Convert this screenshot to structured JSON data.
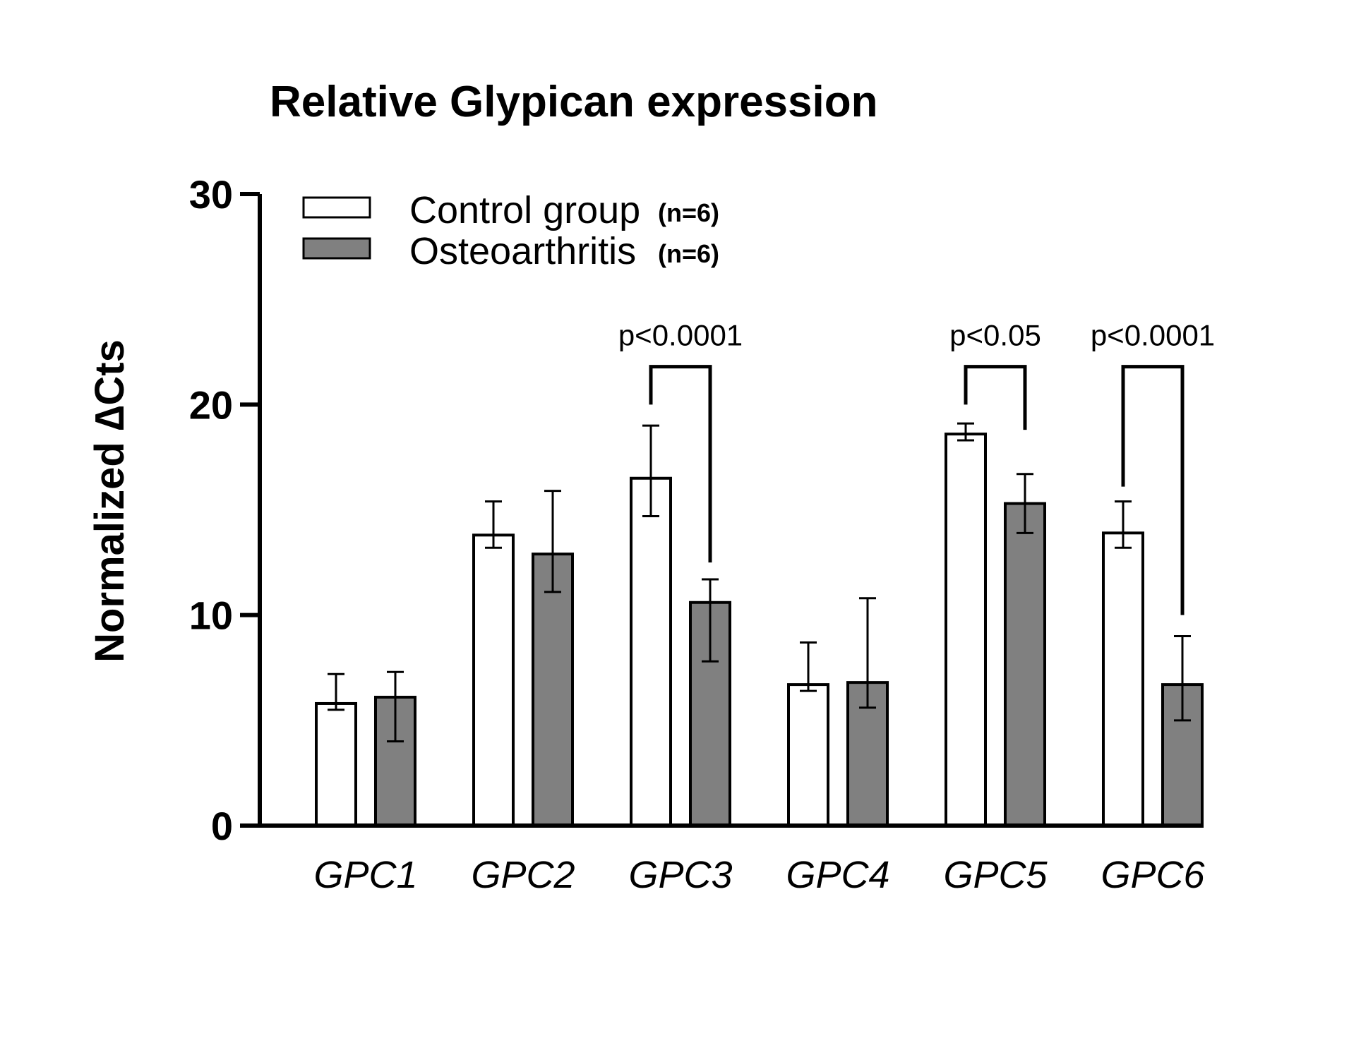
{
  "chart_data": {
    "type": "bar",
    "title": "Relative Glypican expression",
    "ylabel": "Normalized ∆Cts",
    "xlabel": "",
    "ylim": [
      0,
      30
    ],
    "yticks": [
      0,
      10,
      20,
      30
    ],
    "grid": false,
    "legend_position": "top-left",
    "categories": [
      "GPC1",
      "GPC2",
      "GPC3",
      "GPC4",
      "GPC5",
      "GPC6"
    ],
    "series": [
      {
        "name": "Control group",
        "n_label": "(n=6)",
        "color": "#ffffff",
        "values": [
          5.8,
          13.8,
          16.5,
          6.7,
          18.6,
          13.9
        ],
        "err_low": [
          5.5,
          13.2,
          14.7,
          6.4,
          18.3,
          13.2
        ],
        "err_high": [
          7.2,
          15.4,
          19.0,
          8.7,
          19.1,
          15.4
        ]
      },
      {
        "name": "Osteoarthritis",
        "n_label": "(n=6)",
        "color": "#808080",
        "values": [
          6.1,
          12.9,
          10.6,
          6.8,
          15.3,
          6.7
        ],
        "err_low": [
          4.0,
          11.1,
          7.8,
          5.6,
          13.9,
          5.0
        ],
        "err_high": [
          7.3,
          15.9,
          11.7,
          10.8,
          16.7,
          9.0
        ]
      }
    ],
    "annotations": [
      {
        "category": "GPC3",
        "text": "p<0.0001",
        "bracket_y": 21.8,
        "left_end": 20.0,
        "right_end": 12.5
      },
      {
        "category": "GPC5",
        "text": "p<0.05",
        "bracket_y": 21.8,
        "left_end": 20.0,
        "right_end": 18.8
      },
      {
        "category": "GPC6",
        "text": "p<0.0001",
        "bracket_y": 21.8,
        "left_end": 16.1,
        "right_end": 10.0
      }
    ]
  }
}
